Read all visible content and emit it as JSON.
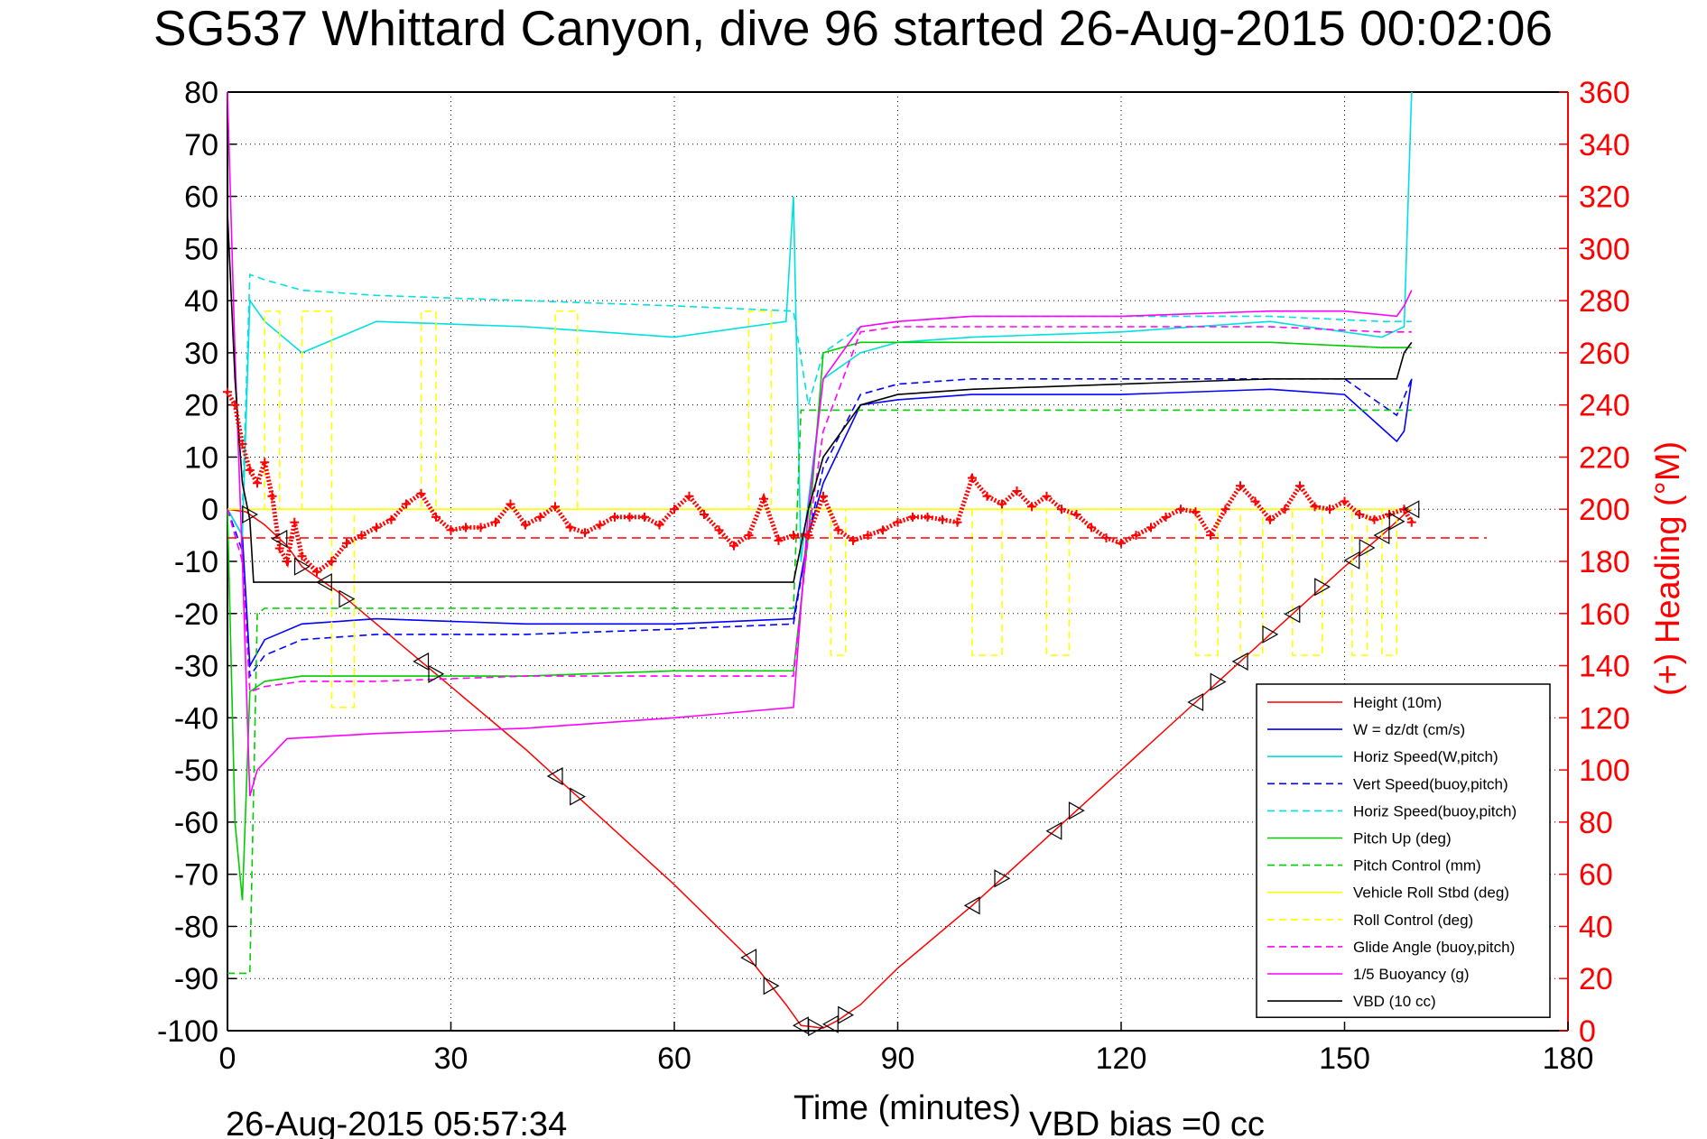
{
  "chart_data": {
    "type": "line",
    "title": "SG537 Whittard Canyon, dive 96 started 26-Aug-2015 00:02:06",
    "xlabel": "Time (minutes)",
    "ylabel": "",
    "ylabel_right": "(+) Heading (°M)",
    "xlim": [
      0,
      180
    ],
    "ylim": [
      -100,
      80
    ],
    "ylim_right": [
      0,
      360
    ],
    "xticks": [
      "0",
      "30",
      "60",
      "90",
      "120",
      "150",
      "180"
    ],
    "yticks": [
      "80",
      "70",
      "60",
      "50",
      "40",
      "30",
      "20",
      "10",
      "0",
      "-10",
      "-20",
      "-30",
      "-40",
      "-50",
      "-60",
      "-70",
      "-80",
      "-90",
      "-100"
    ],
    "yticks_right": [
      "360",
      "340",
      "320",
      "300",
      "280",
      "260",
      "240",
      "220",
      "200",
      "180",
      "160",
      "140",
      "120",
      "100",
      "80",
      "60",
      "40",
      "20",
      "0"
    ],
    "grid": true,
    "legend_position": "bottom-right",
    "footer_left": "26-Aug-2015 05:57:34",
    "footer_right": "VBD bias =0 cc",
    "series": [
      {
        "name": "Height (10m)",
        "color": "#ff0000",
        "style": "solid",
        "x": [
          0,
          2.5,
          5,
          8,
          10,
          15,
          20,
          30,
          40,
          50,
          60,
          70,
          75,
          77,
          80,
          82,
          85,
          90,
          100,
          110,
          120,
          130,
          140,
          150,
          155,
          158,
          159
        ],
        "y": [
          0,
          -0.5,
          -3,
          -7,
          -11,
          -16,
          -22,
          -34,
          -46,
          -59,
          -72,
          -86,
          -95,
          -99,
          -99.5,
          -98,
          -95,
          -88,
          -76,
          -63,
          -50,
          -37,
          -24,
          -11,
          -5,
          -1,
          0
        ]
      },
      {
        "name": "W = dz/dt (cm/s)",
        "color": "#0000ff",
        "style": "solid",
        "x": [
          0,
          2,
          3,
          5,
          10,
          20,
          40,
          60,
          76,
          78,
          80,
          85,
          90,
          100,
          120,
          140,
          150,
          157,
          158,
          159
        ],
        "y": [
          0,
          -5,
          -30,
          -25,
          -22,
          -21,
          -22,
          -22,
          -21,
          -5,
          5,
          20,
          21,
          22,
          22,
          23,
          22,
          13,
          15,
          25
        ]
      },
      {
        "name": "Horiz Speed(W,pitch)",
        "color": "#00e0e0",
        "style": "solid",
        "x": [
          0,
          2,
          3,
          5,
          10,
          20,
          40,
          60,
          75,
          76,
          77,
          80,
          85,
          90,
          100,
          120,
          140,
          155,
          158,
          159
        ],
        "y": [
          0,
          -5,
          40,
          36,
          30,
          36,
          35,
          33,
          36,
          60,
          -10,
          25,
          30,
          32,
          33,
          34,
          36,
          33,
          35,
          80
        ]
      },
      {
        "name": "Vert Speed(buoy,pitch)",
        "color": "#0000ff",
        "style": "dashed",
        "x": [
          0,
          2,
          3,
          5,
          10,
          20,
          40,
          60,
          76,
          78,
          80,
          85,
          90,
          100,
          120,
          140,
          150,
          157,
          159
        ],
        "y": [
          0,
          -8,
          -32,
          -28,
          -25,
          -24,
          -24,
          -23,
          -22,
          -5,
          8,
          22,
          24,
          25,
          25,
          25,
          25,
          18,
          25
        ]
      },
      {
        "name": "Horiz Speed(buoy,pitch)",
        "color": "#00e0e0",
        "style": "dashed",
        "x": [
          0,
          2,
          3,
          5,
          10,
          20,
          40,
          60,
          76,
          78,
          80,
          85,
          90,
          100,
          120,
          140,
          155,
          159
        ],
        "y": [
          0,
          0,
          45,
          44,
          42,
          41,
          40,
          39,
          38,
          20,
          30,
          35,
          36,
          37,
          37,
          37,
          36,
          36
        ]
      },
      {
        "name": "Pitch Up (deg)",
        "color": "#00cc00",
        "style": "solid",
        "x": [
          0,
          1,
          2,
          3,
          5,
          10,
          20,
          40,
          60,
          76,
          78,
          80,
          85,
          90,
          100,
          120,
          140,
          155,
          159
        ],
        "y": [
          0,
          -60,
          -75,
          -35,
          -33,
          -32,
          -32,
          -32,
          -31,
          -31,
          -5,
          30,
          32,
          32,
          32,
          32,
          32,
          31,
          31
        ]
      },
      {
        "name": "Pitch Control (mm)",
        "color": "#00cc00",
        "style": "dashed",
        "x": [
          0,
          2,
          3,
          4,
          5,
          20,
          40,
          60,
          76,
          77,
          78,
          80,
          85,
          90,
          100,
          120,
          140,
          155,
          159
        ],
        "y": [
          -89,
          -89,
          -89,
          -20,
          -19,
          -19,
          -19,
          -19,
          -19,
          19,
          19,
          19,
          19,
          19,
          19,
          19,
          19,
          19,
          19
        ]
      },
      {
        "name": "Vehicle Roll Stbd (deg)",
        "color": "#ffff00",
        "style": "solid",
        "x": [
          0,
          20,
          40,
          60,
          80,
          100,
          120,
          140,
          159
        ],
        "y": [
          0,
          0,
          0,
          0,
          0,
          0,
          0,
          0,
          0
        ]
      },
      {
        "name": "Roll Control (deg)",
        "color": "#ffff00",
        "style": "dashed",
        "x": [
          0,
          5,
          5,
          7,
          7,
          10,
          10,
          14,
          14,
          17,
          17,
          26,
          26,
          28,
          28,
          44,
          44,
          47,
          47,
          70,
          70,
          73,
          73,
          81,
          81,
          83,
          83,
          100,
          100,
          104,
          104,
          110,
          110,
          113,
          113,
          130,
          130,
          133,
          133,
          136,
          136,
          139,
          139,
          143,
          143,
          147,
          147,
          151,
          151,
          153,
          153,
          155,
          155,
          157,
          157
        ],
        "y": [
          0,
          0,
          38,
          38,
          0,
          0,
          38,
          38,
          -38,
          -38,
          0,
          0,
          38,
          38,
          0,
          0,
          38,
          38,
          0,
          0,
          38,
          38,
          0,
          0,
          -28,
          -28,
          0,
          0,
          -28,
          -28,
          0,
          0,
          -28,
          -28,
          0,
          0,
          -28,
          -28,
          0,
          0,
          -28,
          -28,
          0,
          0,
          -28,
          -28,
          0,
          0,
          -28,
          -28,
          0,
          0,
          -28,
          -28,
          0
        ]
      },
      {
        "name": "Glide Angle (buoy,pitch)",
        "color": "#ff00ff",
        "style": "dashed",
        "x": [
          0,
          2,
          3,
          5,
          10,
          20,
          40,
          60,
          76,
          78,
          80,
          85,
          90,
          100,
          120,
          140,
          155,
          159
        ],
        "y": [
          0,
          -10,
          -35,
          -34,
          -33,
          -33,
          -32,
          -32,
          -32,
          -5,
          15,
          34,
          35,
          35,
          35,
          35,
          34,
          34
        ]
      },
      {
        "name": "1/5 Buoyancy (g)",
        "color": "#ff00ff",
        "style": "solid",
        "x": [
          0,
          1,
          2,
          3,
          4,
          8,
          20,
          40,
          60,
          76,
          78,
          80,
          85,
          90,
          100,
          120,
          140,
          150,
          157,
          158,
          159
        ],
        "y": [
          80,
          30,
          -10,
          -55,
          -50,
          -44,
          -43,
          -42,
          -40,
          -38,
          0,
          25,
          35,
          36,
          37,
          37,
          38,
          38,
          37,
          39,
          42
        ]
      },
      {
        "name": "VBD (10 cc)",
        "color": "#000000",
        "style": "solid",
        "x": [
          0,
          1,
          2,
          3,
          3.5,
          20,
          40,
          60,
          76,
          78,
          80,
          85,
          90,
          100,
          120,
          140,
          150,
          157,
          158,
          159
        ],
        "y": [
          57,
          25,
          5,
          -2,
          -14,
          -14,
          -14,
          -14,
          -14,
          0,
          10,
          20,
          22,
          23,
          24,
          25,
          25,
          25,
          30,
          32
        ]
      }
    ],
    "heading": {
      "name": "(+) Heading (°M)",
      "color": "#ff0000",
      "axis": "right",
      "target_line": 189,
      "x": [
        0,
        1,
        2,
        3,
        4,
        5,
        6,
        7,
        8,
        9,
        10,
        12,
        14,
        16,
        18,
        20,
        22,
        24,
        26,
        28,
        30,
        32,
        34,
        36,
        38,
        40,
        42,
        44,
        46,
        48,
        50,
        52,
        54,
        56,
        58,
        60,
        62,
        64,
        66,
        68,
        70,
        72,
        74,
        76,
        78,
        80,
        82,
        84,
        86,
        88,
        90,
        92,
        94,
        96,
        98,
        100,
        102,
        104,
        106,
        108,
        110,
        112,
        114,
        116,
        118,
        120,
        122,
        124,
        126,
        128,
        130,
        132,
        134,
        136,
        138,
        140,
        142,
        144,
        146,
        148,
        150,
        152,
        154,
        156,
        158,
        159
      ],
      "y": [
        245,
        240,
        225,
        215,
        210,
        218,
        205,
        185,
        180,
        195,
        182,
        176,
        180,
        187,
        190,
        193,
        196,
        202,
        206,
        197,
        192,
        193,
        193,
        195,
        202,
        194,
        197,
        201,
        193,
        191,
        194,
        197,
        197,
        197,
        194,
        200,
        205,
        198,
        192,
        186,
        190,
        204,
        188,
        190,
        190,
        205,
        192,
        188,
        190,
        192,
        195,
        197,
        197,
        196,
        195,
        212,
        205,
        202,
        207,
        201,
        205,
        200,
        198,
        193,
        189,
        187,
        190,
        193,
        197,
        200,
        199,
        190,
        200,
        209,
        203,
        196,
        200,
        209,
        201,
        200,
        203,
        198,
        196,
        198,
        200,
        195
      ]
    }
  }
}
